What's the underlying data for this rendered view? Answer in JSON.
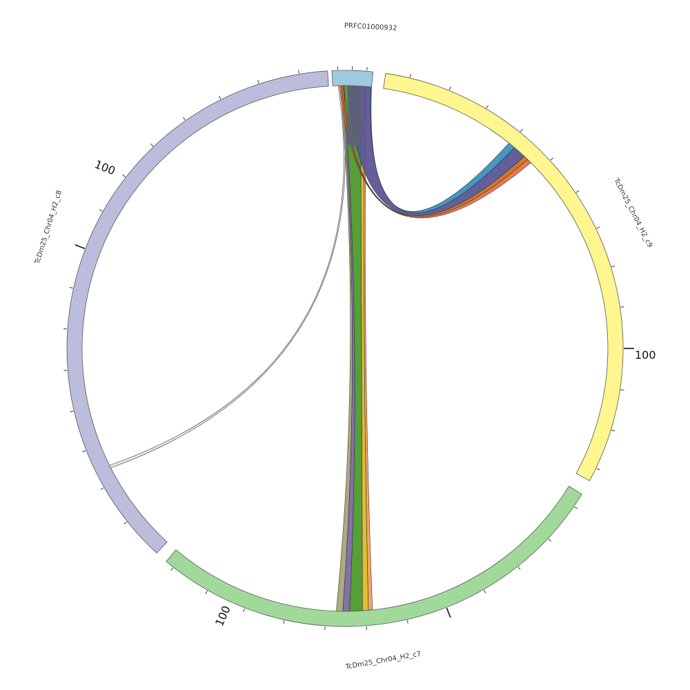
{
  "segments": [
    {
      "id": "PRFC01000932",
      "label": "PRFC01000932",
      "color": "#9ecae1"
    },
    {
      "id": "c9",
      "label": "TcDm25_Chr04_H2_c9",
      "color": "#fff68f"
    },
    {
      "id": "c7",
      "label": "TcDm25_Chr04_H2_c7",
      "color": "#a1d99b"
    },
    {
      "id": "c8",
      "label": "TcDm25_Chr04_H2_c8",
      "color": "#bcbddc"
    }
  ],
  "tick_labels": {
    "c9": "100",
    "c7": "100",
    "c8": "100"
  },
  "links": [
    {
      "from": "PRFC01000932",
      "to": "TcDm25_Chr04_H2_c7",
      "color": "#4d9a2e"
    },
    {
      "from": "PRFC01000932",
      "to": "TcDm25_Chr04_H2_c7",
      "color": "#e0b829"
    },
    {
      "from": "PRFC01000932",
      "to": "TcDm25_Chr04_H2_c7",
      "color": "#f4a05a"
    },
    {
      "from": "PRFC01000932",
      "to": "TcDm25_Chr04_H2_c7",
      "color": "#7b6aa8"
    },
    {
      "from": "PRFC01000932",
      "to": "TcDm25_Chr04_H2_c7",
      "color": "#a9a677"
    },
    {
      "from": "PRFC01000932",
      "to": "TcDm25_Chr04_H2_c9",
      "color": "#5b5696"
    },
    {
      "from": "PRFC01000932",
      "to": "TcDm25_Chr04_H2_c9",
      "color": "#3f8fc0"
    },
    {
      "from": "PRFC01000932",
      "to": "TcDm25_Chr04_H2_c9",
      "color": "#c8741f"
    },
    {
      "from": "PRFC01000932",
      "to": "TcDm25_Chr04_H2_c9",
      "color": "#f46d43"
    },
    {
      "from": "PRFC01000932",
      "to": "TcDm25_Chr04_H2_c8",
      "color": "#dddddd"
    }
  ],
  "ribbon_overlay_color": "#5d6077"
}
